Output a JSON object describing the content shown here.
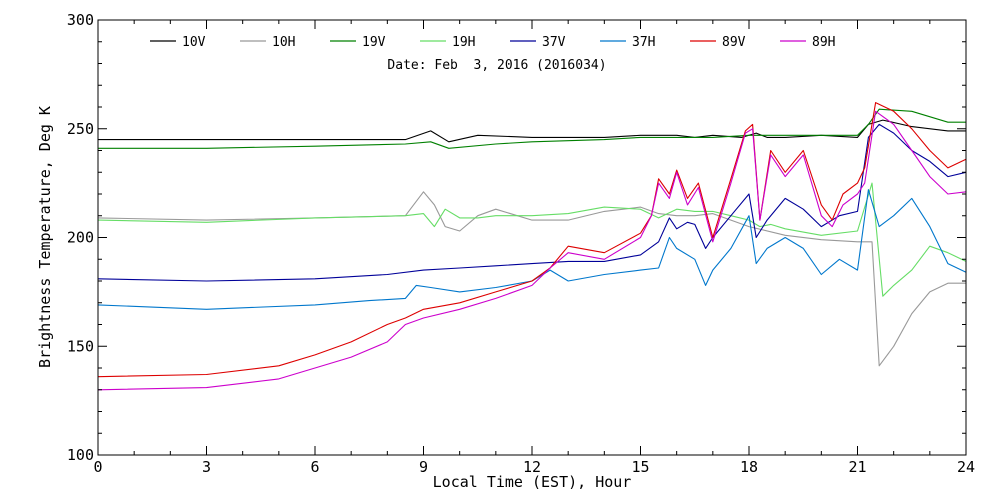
{
  "chart_data": {
    "type": "line",
    "title": "",
    "subtitle": "Date: Feb  3, 2016 (2016034)",
    "xlabel": "Local Time (EST), Hour",
    "ylabel": "Brightness Temperature, Deg K",
    "xlim": [
      0,
      24
    ],
    "ylim": [
      100,
      300
    ],
    "xticks": [
      0,
      3,
      6,
      9,
      12,
      15,
      18,
      21,
      24
    ],
    "yticks": [
      100,
      150,
      200,
      250,
      300
    ],
    "grid": false,
    "legend": "top",
    "series": [
      {
        "name": "10V",
        "color": "#000000",
        "x": [
          0,
          3,
          6,
          8.5,
          9.2,
          9.7,
          10.5,
          12,
          13,
          14,
          15,
          16,
          16.5,
          17,
          17.8,
          18.2,
          18.5,
          19,
          20,
          21,
          21.3,
          21.7,
          22.5,
          23.5,
          24
        ],
        "y": [
          245,
          245,
          245,
          245,
          249,
          244,
          247,
          246,
          246,
          246,
          247,
          247,
          246,
          247,
          246,
          248,
          246,
          246,
          247,
          246,
          252,
          254,
          251,
          249,
          249
        ]
      },
      {
        "name": "10H",
        "color": "#999999",
        "x": [
          0,
          3,
          6,
          8.5,
          9.0,
          9.3,
          9.6,
          10.0,
          10.5,
          11,
          12,
          13,
          14,
          15,
          15.5,
          16,
          16.5,
          17,
          18,
          19,
          20,
          21,
          21.4,
          21.6,
          22,
          22.5,
          23,
          23.5,
          24
        ],
        "y": [
          209,
          208,
          209,
          210,
          221,
          215,
          205,
          203,
          210,
          213,
          208,
          208,
          212,
          214,
          211,
          210,
          210,
          211,
          205,
          201,
          199,
          198,
          198,
          141,
          150,
          165,
          175,
          179,
          179
        ]
      },
      {
        "name": "19V",
        "color": "#008000",
        "x": [
          0,
          3,
          6,
          8.5,
          9.2,
          9.7,
          11,
          12,
          14,
          15,
          16,
          17,
          18,
          19,
          20,
          21,
          21.3,
          21.6,
          22.5,
          23.5,
          24
        ],
        "y": [
          241,
          241,
          242,
          243,
          244,
          241,
          243,
          244,
          245,
          246,
          246,
          246,
          247,
          247,
          247,
          247,
          252,
          259,
          258,
          253,
          253
        ]
      },
      {
        "name": "19H",
        "color": "#66dd66",
        "x": [
          0,
          3,
          6,
          8.5,
          9.0,
          9.3,
          9.6,
          10.0,
          10.5,
          11,
          12,
          13,
          14,
          15,
          15.5,
          16,
          16.5,
          17,
          17.5,
          18,
          18.3,
          18.6,
          19,
          20,
          21,
          21.4,
          21.7,
          22.0,
          22.5,
          23,
          23.5,
          24
        ],
        "y": [
          208,
          207,
          209,
          210,
          211,
          205,
          213,
          209,
          209,
          210,
          210,
          211,
          214,
          213,
          209,
          213,
          212,
          212,
          210,
          208,
          205,
          206,
          204,
          201,
          203,
          225,
          173,
          178,
          185,
          196,
          193,
          189
        ]
      },
      {
        "name": "37V",
        "color": "#000099",
        "x": [
          0,
          3,
          6,
          8,
          9,
          10,
          11,
          12,
          13,
          14,
          15,
          15.5,
          15.8,
          16,
          16.3,
          16.5,
          16.8,
          17,
          17.5,
          18,
          18.2,
          18.5,
          19,
          19.5,
          20,
          20.5,
          21,
          21.3,
          21.6,
          22,
          22.5,
          23,
          23.5,
          24
        ],
        "y": [
          181,
          180,
          181,
          183,
          185,
          186,
          187,
          188,
          189,
          189,
          192,
          198,
          209,
          204,
          207,
          206,
          195,
          200,
          210,
          220,
          200,
          208,
          218,
          213,
          205,
          210,
          212,
          246,
          252,
          248,
          240,
          235,
          228,
          230
        ]
      },
      {
        "name": "37H",
        "color": "#0077cc",
        "x": [
          0,
          3,
          6,
          7.5,
          8.5,
          8.8,
          9.2,
          10,
          11,
          12,
          12.5,
          13,
          14,
          15,
          15.5,
          15.8,
          16,
          16.5,
          16.8,
          17,
          17.5,
          18,
          18.2,
          18.5,
          19,
          19.5,
          20,
          20.5,
          21,
          21.3,
          21.6,
          22,
          22.5,
          23,
          23.5,
          24
        ],
        "y": [
          169,
          167,
          169,
          171,
          172,
          178,
          177,
          175,
          177,
          180,
          185,
          180,
          183,
          185,
          186,
          200,
          195,
          190,
          178,
          185,
          195,
          210,
          188,
          195,
          200,
          195,
          183,
          190,
          185,
          222,
          205,
          210,
          218,
          205,
          188,
          184
        ]
      },
      {
        "name": "89V",
        "color": "#dd0000",
        "x": [
          0,
          3,
          5,
          6,
          7,
          8,
          8.5,
          9,
          10,
          11,
          12,
          12.5,
          13,
          14,
          15,
          15.3,
          15.5,
          15.8,
          16,
          16.3,
          16.6,
          17,
          17.5,
          17.9,
          18.1,
          18.3,
          18.6,
          19,
          19.5,
          20,
          20.3,
          20.6,
          21,
          21.2,
          21.5,
          22,
          22.5,
          23,
          23.5,
          24
        ],
        "y": [
          136,
          137,
          141,
          146,
          152,
          160,
          163,
          167,
          170,
          175,
          180,
          186,
          196,
          193,
          202,
          210,
          227,
          220,
          231,
          218,
          225,
          200,
          227,
          249,
          252,
          208,
          240,
          230,
          240,
          215,
          208,
          220,
          225,
          232,
          262,
          258,
          250,
          240,
          232,
          236
        ]
      },
      {
        "name": "89H",
        "color": "#cc00cc",
        "x": [
          0,
          3,
          5,
          6,
          7,
          8,
          8.5,
          9,
          10,
          11,
          12,
          12.5,
          13,
          14,
          15,
          15.3,
          15.5,
          15.8,
          16,
          16.3,
          16.6,
          17,
          17.5,
          17.9,
          18.1,
          18.3,
          18.6,
          19,
          19.5,
          20,
          20.3,
          20.6,
          21,
          21.2,
          21.5,
          22,
          22.5,
          23,
          23.5,
          24
        ],
        "y": [
          130,
          131,
          135,
          140,
          145,
          152,
          160,
          163,
          167,
          172,
          178,
          186,
          193,
          190,
          200,
          210,
          225,
          218,
          230,
          215,
          223,
          198,
          225,
          248,
          250,
          208,
          238,
          228,
          238,
          210,
          205,
          215,
          220,
          225,
          258,
          252,
          240,
          228,
          220,
          221
        ]
      }
    ]
  }
}
